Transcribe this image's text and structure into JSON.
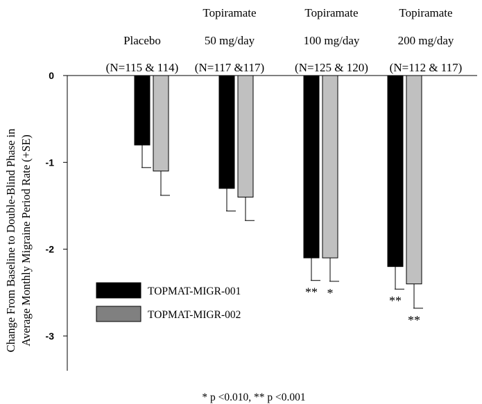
{
  "chart_data": {
    "type": "bar",
    "group_headers": [
      {
        "lines": [
          "",
          "Placebo",
          "(N=115 & 114)"
        ]
      },
      {
        "lines": [
          "Topiramate",
          "50 mg/day",
          "(N=117 &117)"
        ]
      },
      {
        "lines": [
          "Topiramate",
          "100 mg/day",
          "(N=125 & 120)"
        ]
      },
      {
        "lines": [
          "Topiramate",
          "200 mg/day",
          "(N=112 & 117)"
        ]
      }
    ],
    "ylabel_lines": [
      "Change From Baseline to Double-Blind Phase in",
      "Average Monthly Migraine Period Rate (+SE)"
    ],
    "ylim": [
      -3.4,
      0
    ],
    "yticks": [
      {
        "value": 0,
        "label": "0"
      },
      {
        "value": -1,
        "label": "-1"
      },
      {
        "value": -2,
        "label": "-2"
      },
      {
        "value": -3,
        "label": "-3"
      }
    ],
    "series": [
      {
        "name": "TOPMAT-MIGR-001",
        "color": "#000000",
        "values": [
          -0.8,
          -1.3,
          -2.1,
          -2.2
        ],
        "se": [
          0.26,
          0.26,
          0.26,
          0.26
        ],
        "significance": [
          "",
          "",
          "**",
          "**"
        ]
      },
      {
        "name": "TOPMAT-MIGR-002",
        "color": "#c0c0c0",
        "values": [
          -1.1,
          -1.4,
          -2.1,
          -2.4
        ],
        "se": [
          0.28,
          0.27,
          0.27,
          0.28
        ],
        "significance": [
          "",
          "",
          "*",
          "**"
        ]
      }
    ],
    "legend_placement": "lower-left",
    "footnote": "* p <0.010, ** p <0.001"
  }
}
